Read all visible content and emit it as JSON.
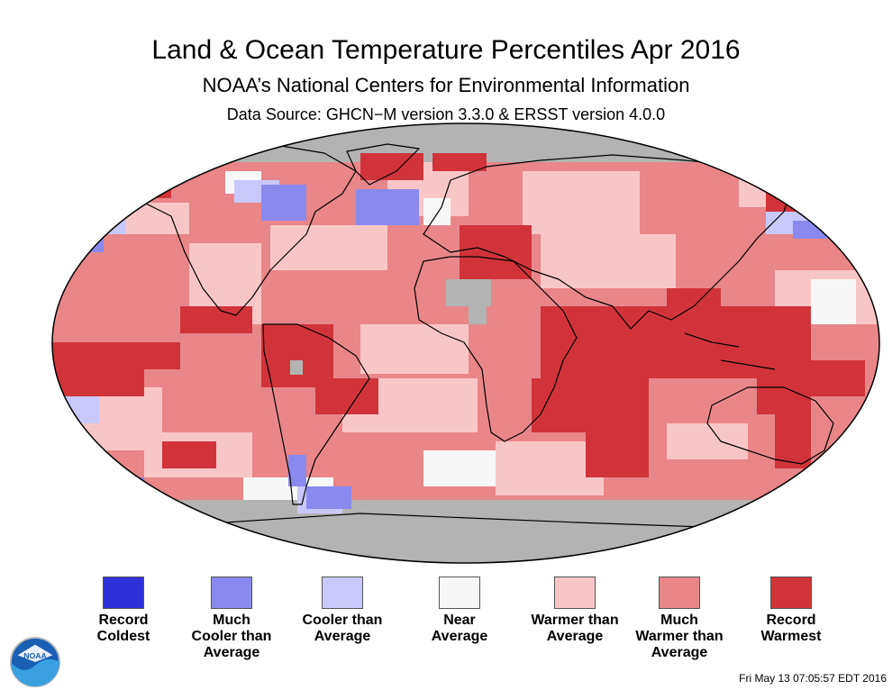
{
  "header": {
    "title": "Land & Ocean Temperature Percentiles Apr 2016",
    "subtitle": "NOAA’s National Centers for Environmental Information",
    "source": "Data Source: GHCN−M version 3.3.0 & ERSST version 4.0.0"
  },
  "colors": {
    "record_coldest": "#3030d8",
    "much_cooler": "#8a8aee",
    "cooler": "#c8c8fa",
    "near": "#f7f7f7",
    "warmer": "#f9c6c8",
    "much_warmer": "#e8868a",
    "record_warmest": "#d13438",
    "missing": "#b3b3b3"
  },
  "legend": [
    {
      "key": "record_coldest",
      "lines": [
        "Record",
        "Coldest"
      ]
    },
    {
      "key": "much_cooler",
      "lines": [
        "Much",
        "Cooler than",
        "Average"
      ]
    },
    {
      "key": "cooler",
      "lines": [
        "Cooler than",
        "Average"
      ]
    },
    {
      "key": "near",
      "lines": [
        "Near",
        "Average"
      ]
    },
    {
      "key": "warmer",
      "lines": [
        "Warmer than",
        "Average"
      ]
    },
    {
      "key": "much_warmer",
      "lines": [
        "Much",
        "Warmer than",
        "Average"
      ]
    },
    {
      "key": "record_warmest",
      "lines": [
        "Record",
        "Warmest"
      ]
    }
  ],
  "logo_text": "NOAA",
  "timestamp": "Fri May 13 07:05:57 EDT 2016"
}
